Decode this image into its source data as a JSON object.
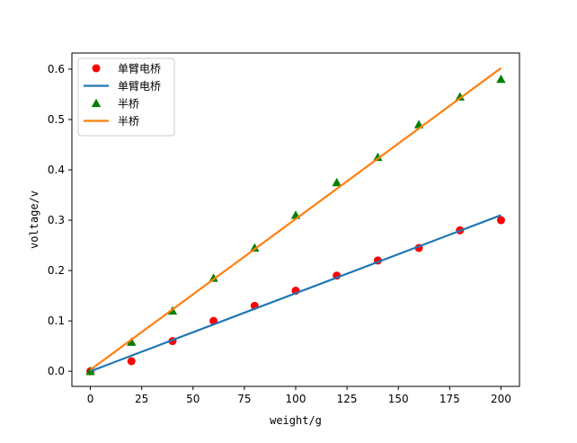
{
  "chart_data": {
    "type": "scatter",
    "title": "",
    "xlabel": "weight/g",
    "ylabel": "voltage/v",
    "xlim": [
      -9,
      209
    ],
    "ylim": [
      -0.03,
      0.632
    ],
    "xticks": [
      0,
      25,
      50,
      75,
      100,
      125,
      150,
      175,
      200
    ],
    "xtick_labels": [
      "0",
      "25",
      "50",
      "75",
      "100",
      "125",
      "150",
      "175",
      "200"
    ],
    "yticks": [
      0.0,
      0.1,
      0.2,
      0.3,
      0.4,
      0.5,
      0.6
    ],
    "ytick_labels": [
      "0.0",
      "0.1",
      "0.2",
      "0.3",
      "0.4",
      "0.5",
      "0.6"
    ],
    "grid": false,
    "legend_position": "top-left",
    "series": [
      {
        "name": "单臂电桥",
        "kind": "scatter",
        "marker": "circle",
        "color": "#ff0000",
        "x": [
          0,
          20,
          40,
          60,
          80,
          100,
          120,
          140,
          160,
          180,
          200
        ],
        "y": [
          0.0,
          0.02,
          0.06,
          0.1,
          0.13,
          0.16,
          0.19,
          0.22,
          0.245,
          0.28,
          0.3
        ]
      },
      {
        "name": "单臂电桥",
        "kind": "line",
        "color": "#1f77b4",
        "x": [
          0,
          200
        ],
        "y": [
          0.0,
          0.31
        ]
      },
      {
        "name": "半桥",
        "kind": "scatter",
        "marker": "triangle",
        "color": "#008000",
        "x": [
          0,
          20,
          40,
          60,
          80,
          100,
          120,
          140,
          160,
          180,
          200
        ],
        "y": [
          0.0,
          0.058,
          0.12,
          0.185,
          0.245,
          0.31,
          0.375,
          0.425,
          0.49,
          0.545,
          0.58
        ]
      },
      {
        "name": "半桥",
        "kind": "line",
        "color": "#ff7f0e",
        "x": [
          0,
          200
        ],
        "y": [
          0.003,
          0.602
        ]
      }
    ]
  }
}
